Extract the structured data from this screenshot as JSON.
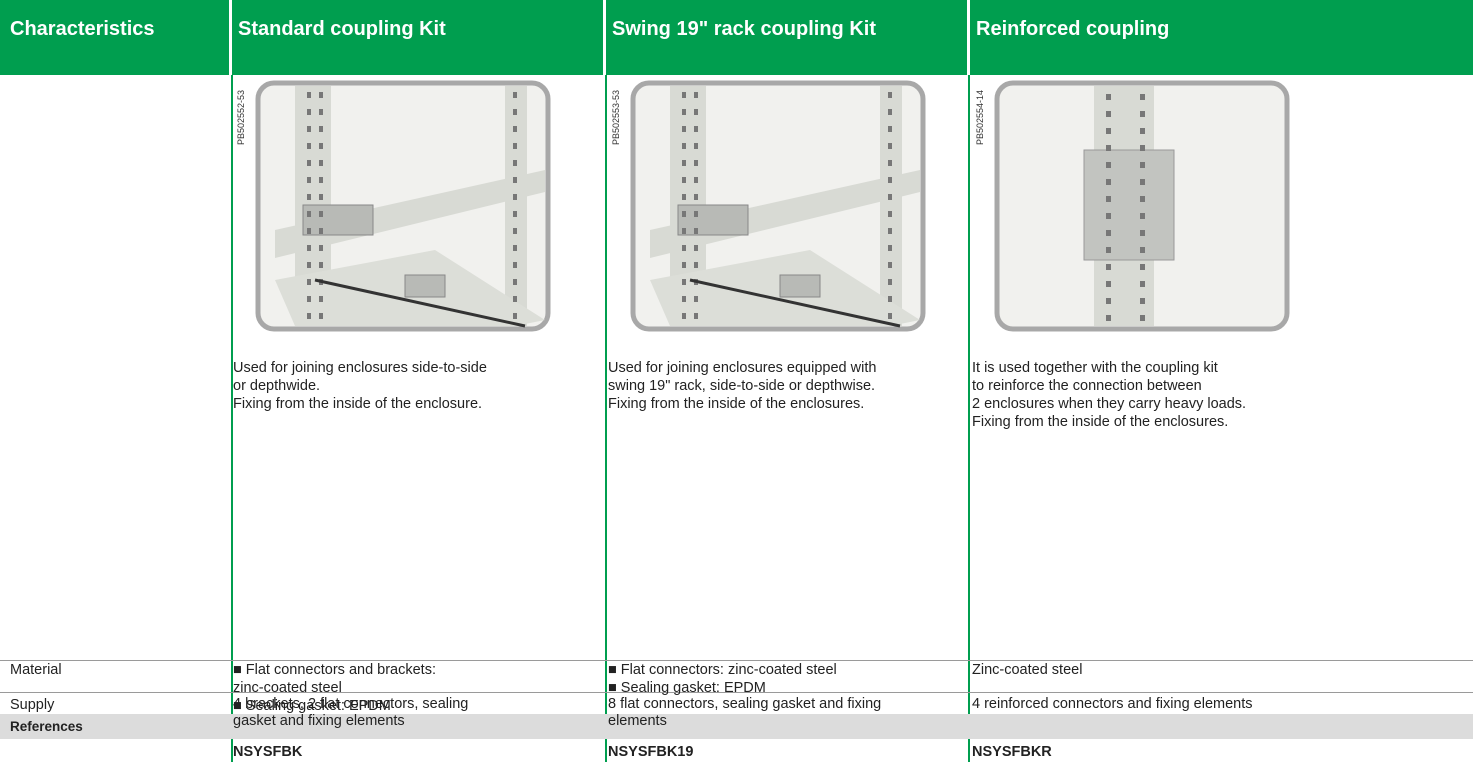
{
  "header": {
    "columns": [
      "Characteristics",
      "Standard coupling Kit",
      "Swing 19\" rack coupling Kit",
      "Reinforced coupling"
    ]
  },
  "products": [
    {
      "image_code": "PB502552-53",
      "description": [
        "Used for joining enclosures side-to-side",
        "or depthwide.",
        "Fixing from the inside of the enclosure."
      ],
      "material": [
        "■  Flat connectors and brackets:",
        "zinc-coated steel",
        "■  Sealing gasket: EPDM"
      ],
      "supply": [
        "4 brackets, 2 flat connectors, sealing",
        "gasket and fixing elements"
      ],
      "reference": "NSYSFBK"
    },
    {
      "image_code": "PB502553-53",
      "description": [
        "Used for joining enclosures equipped with",
        "swing 19\" rack, side-to-side or depthwise.",
        "Fixing from the inside of the enclosures."
      ],
      "material": [
        "■  Flat connectors: zinc-coated steel",
        "■  Sealing gasket: EPDM"
      ],
      "supply": [
        "8 flat connectors, sealing gasket and fixing",
        "elements"
      ],
      "reference": "NSYSFBK19"
    },
    {
      "image_code": "PB502554-14",
      "description": [
        "It is used together with the coupling kit",
        "to reinforce the connection between",
        "2 enclosures when they carry heavy loads.",
        "Fixing from the inside of the enclosures."
      ],
      "material": [
        "Zinc-coated steel"
      ],
      "supply": [
        "4 reinforced connectors and fixing elements"
      ],
      "reference": "NSYSFBKR"
    }
  ],
  "row_labels": {
    "material": "Material",
    "supply": "Supply",
    "references": "References"
  }
}
